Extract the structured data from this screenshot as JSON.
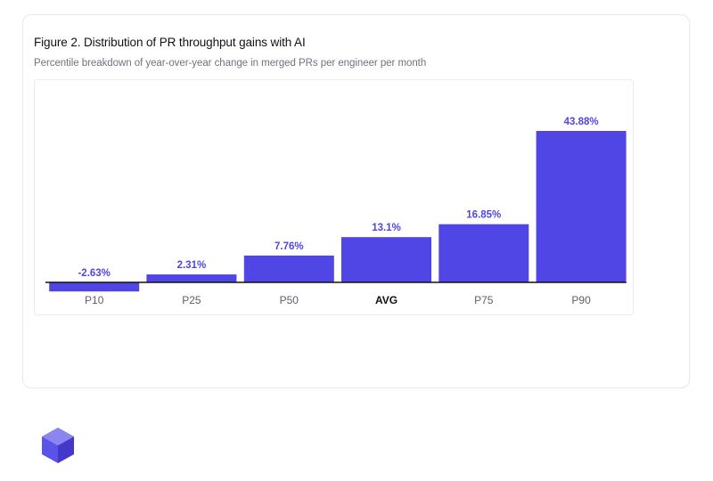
{
  "figure": {
    "title": "Figure 2. Distribution of PR throughput gains with AI",
    "subtitle": "Percentile breakdown of year-over-year change in merged PRs per engineer per month"
  },
  "colors": {
    "bar": "#4f46e5",
    "label": "#4f46e5",
    "axis": "#111111",
    "tick": "#5b5f6b",
    "tick_emphasis": "#111111"
  },
  "chart_data": {
    "type": "bar",
    "title": "Figure 2. Distribution of PR throughput gains with AI",
    "subtitle": "Percentile breakdown of year-over-year change in merged PRs per engineer per month",
    "xlabel": "",
    "ylabel": "",
    "categories": [
      "P10",
      "P25",
      "P50",
      "AVG",
      "P75",
      "P90"
    ],
    "values": [
      -2.63,
      2.31,
      7.76,
      13.1,
      16.85,
      43.88
    ],
    "value_labels": [
      "-2.63%",
      "2.31%",
      "7.76%",
      "13.1%",
      "16.85%",
      "43.88%"
    ],
    "emphasized_category": "AVG",
    "ylim": [
      -2.63,
      43.88
    ],
    "grid": false,
    "legend": "none"
  },
  "brand": {
    "logo_icon": "cube-logo-icon"
  }
}
